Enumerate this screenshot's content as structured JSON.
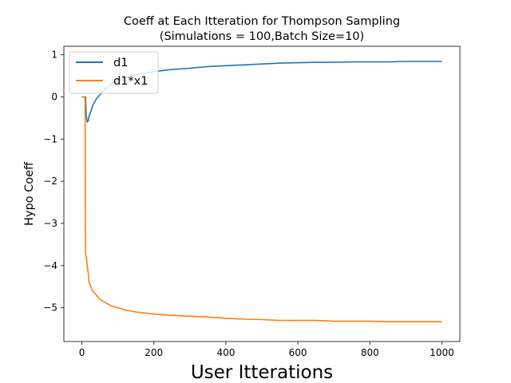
{
  "chart_data": {
    "type": "line",
    "title_line1": "Coeff at Each Itteration for Thompson Sampling",
    "title_line2": "(Simulations = 100,Batch Size=10)",
    "xlabel": "User Itterations",
    "ylabel": "Hypo Coeff",
    "xlim": [
      -50,
      1050
    ],
    "ylim": [
      -5.8,
      1.2
    ],
    "xticks": [
      0,
      200,
      400,
      600,
      800,
      1000
    ],
    "yticks": [
      1,
      0,
      -1,
      -2,
      -3,
      -4,
      -5
    ],
    "ytick_labels": [
      "1",
      "0",
      "−1",
      "−2",
      "−3",
      "−4",
      "−5"
    ],
    "legend_position": "upper-left",
    "colors": {
      "d1": "#1f77b4",
      "d1x1": "#ff7f0e"
    },
    "series": [
      {
        "name": "d1",
        "x": [
          0,
          5,
          10,
          12,
          15,
          18,
          20,
          25,
          30,
          40,
          50,
          60,
          70,
          80,
          100,
          120,
          150,
          180,
          200,
          250,
          300,
          350,
          400,
          450,
          500,
          550,
          600,
          650,
          700,
          750,
          800,
          850,
          900,
          950,
          1000
        ],
        "y": [
          0,
          0,
          0,
          -0.45,
          -0.6,
          -0.55,
          -0.45,
          -0.35,
          -0.2,
          -0.05,
          0.05,
          0.15,
          0.22,
          0.3,
          0.4,
          0.45,
          0.52,
          0.57,
          0.6,
          0.65,
          0.68,
          0.72,
          0.74,
          0.76,
          0.78,
          0.8,
          0.81,
          0.82,
          0.82,
          0.83,
          0.83,
          0.83,
          0.84,
          0.84,
          0.84
        ]
      },
      {
        "name": "d1*x1",
        "x": [
          0,
          5,
          8,
          9,
          10,
          12,
          15,
          18,
          20,
          25,
          30,
          40,
          50,
          60,
          80,
          100,
          120,
          150,
          200,
          250,
          300,
          350,
          400,
          450,
          500,
          550,
          600,
          650,
          700,
          750,
          800,
          850,
          900,
          950,
          1000
        ],
        "y": [
          0,
          0,
          0,
          -0.1,
          -3.7,
          -3.8,
          -4.0,
          -4.2,
          -4.4,
          -4.5,
          -4.6,
          -4.7,
          -4.8,
          -4.85,
          -4.95,
          -5.0,
          -5.05,
          -5.1,
          -5.15,
          -5.18,
          -5.2,
          -5.22,
          -5.25,
          -5.27,
          -5.28,
          -5.3,
          -5.3,
          -5.3,
          -5.32,
          -5.32,
          -5.32,
          -5.33,
          -5.33,
          -5.33,
          -5.33
        ]
      }
    ]
  }
}
